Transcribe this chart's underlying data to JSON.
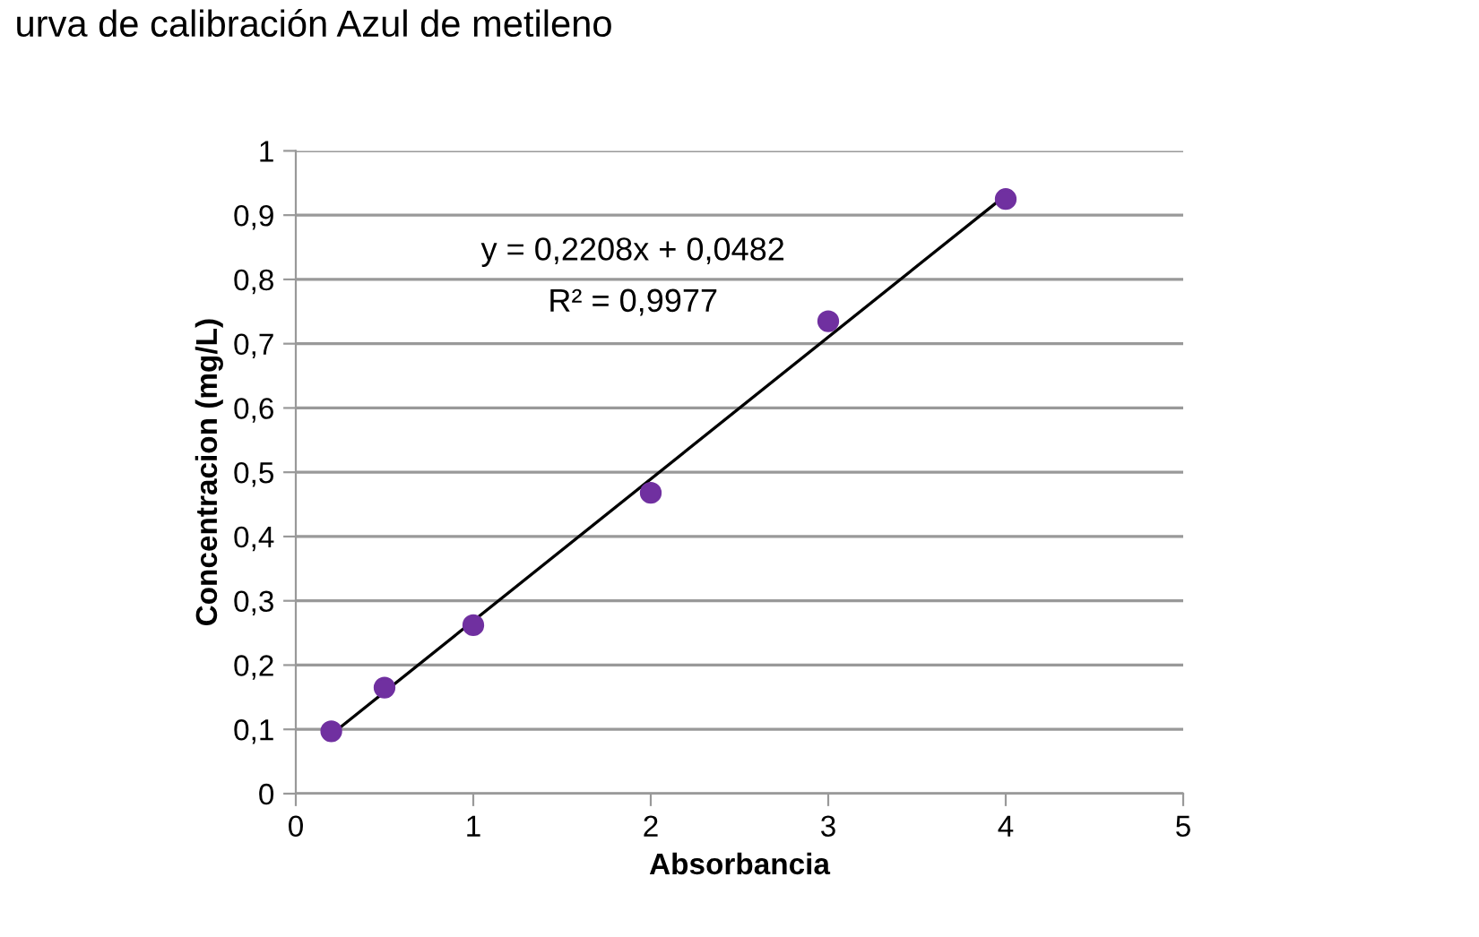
{
  "chart_data": {
    "type": "scatter",
    "title": "urva de calibración Azul de metileno",
    "xlabel": "Absorbancia",
    "ylabel": "Concentracion (mg/L)",
    "series": [
      {
        "color": "#7030a0",
        "marker": "circle",
        "x": [
          0.2,
          0.5,
          1,
          2,
          3,
          4
        ],
        "values": [
          0.097,
          0.165,
          0.262,
          0.468,
          0.735,
          0.925
        ]
      },
      {
        "type": "line",
        "color": "#000000",
        "x": [
          0.2,
          4
        ],
        "values": [
          0.092,
          0.931
        ]
      }
    ],
    "annotations": [
      "y = 0,2208x + 0,0482",
      "R² = 0,9977"
    ],
    "xlim": [
      0,
      5
    ],
    "xticks": [
      0,
      1,
      2,
      3,
      4,
      5
    ],
    "ylim": [
      0,
      1
    ],
    "yticks": [
      0,
      {
        "value": 0.1,
        "label": "0,1"
      },
      {
        "value": 0.2,
        "label": "0,2"
      },
      {
        "value": 0.3,
        "label": "0,3"
      },
      {
        "value": 0.4,
        "label": "0,4"
      },
      {
        "value": 0.5,
        "label": "0,5"
      },
      {
        "value": 0.6,
        "label": "0,6"
      },
      {
        "value": 0.7,
        "label": "0,7"
      },
      {
        "value": 0.8,
        "label": "0,8"
      },
      {
        "value": 0.9,
        "label": "0,9"
      },
      1
    ],
    "grid": "y",
    "legend": false
  }
}
